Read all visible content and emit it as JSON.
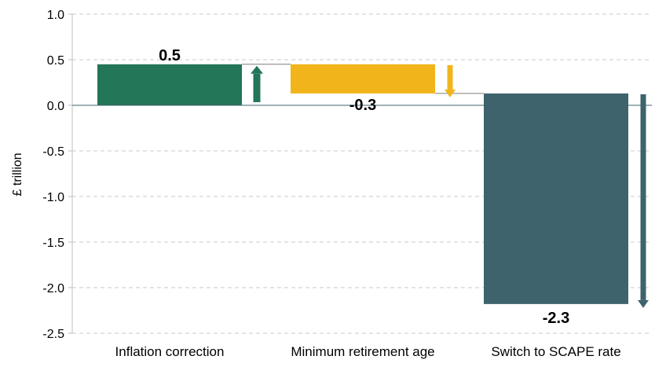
{
  "chart_data": {
    "type": "waterfall",
    "ylabel": "£ trillion",
    "ylim": [
      -2.5,
      1.0
    ],
    "yticks": [
      1.0,
      0.5,
      0.0,
      -0.5,
      -1.0,
      -1.5,
      -2.0,
      -2.5
    ],
    "ytick_labels": [
      "1.0",
      "0.5",
      "0.0",
      "-0.5",
      "-1.0",
      "-1.5",
      "-2.0",
      "-2.5"
    ],
    "grid": true,
    "categories": [
      "Inflation correction",
      "Minimum retirement age",
      "Switch to SCAPE rate"
    ],
    "values": [
      0.45,
      -0.32,
      -2.31
    ],
    "data_labels": [
      "0.5",
      "-0.3",
      "-2.3"
    ],
    "colors": [
      "#237657",
      "#F1B51B",
      "#3F636C"
    ],
    "arrow_directions": [
      "up",
      "down",
      "down"
    ]
  }
}
